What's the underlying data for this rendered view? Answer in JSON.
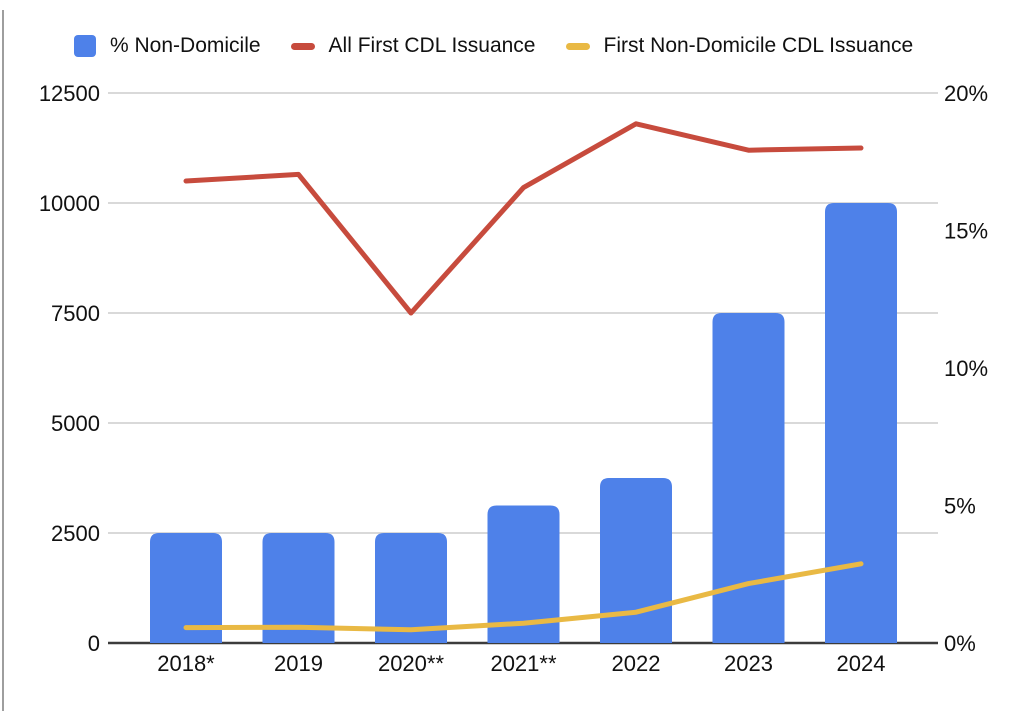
{
  "chart_data": {
    "type": "combo-bar-line",
    "categories": [
      "2018*",
      "2019",
      "2020**",
      "2021**",
      "2022",
      "2023",
      "2024"
    ],
    "series": [
      {
        "name": "% Non-Domicile",
        "type": "bar",
        "axis": "right",
        "color": "#4E81E9",
        "swatch": "square",
        "values": [
          4,
          4,
          4,
          5,
          6,
          12,
          16
        ],
        "unit": "%"
      },
      {
        "name": "All First CDL Issuance",
        "type": "line",
        "axis": "left",
        "color": "#C74B3D",
        "swatch": "dash",
        "values": [
          10500,
          10650,
          7500,
          10350,
          11800,
          11200,
          11250
        ]
      },
      {
        "name": "First Non-Domicile CDL Issuance",
        "type": "line",
        "axis": "left",
        "color": "#E9B944",
        "swatch": "dash",
        "values": [
          350,
          360,
          300,
          450,
          700,
          1350,
          1800
        ]
      }
    ],
    "left_axis": {
      "range": [
        0,
        12500
      ],
      "ticks": [
        {
          "v": 0,
          "label": "0"
        },
        {
          "v": 2500,
          "label": "2500"
        },
        {
          "v": 5000,
          "label": "5000"
        },
        {
          "v": 7500,
          "label": "7500"
        },
        {
          "v": 10000,
          "label": "10000"
        },
        {
          "v": 12500,
          "label": "12500"
        }
      ]
    },
    "right_axis": {
      "range": [
        0,
        20
      ],
      "ticks": [
        {
          "v": 0,
          "label": "0%"
        },
        {
          "v": 5,
          "label": "5%"
        },
        {
          "v": 10,
          "label": "10%"
        },
        {
          "v": 15,
          "label": "15%"
        },
        {
          "v": 20,
          "label": "20%"
        }
      ]
    },
    "grid": true,
    "legend_position": "top",
    "colors": {
      "gridline": "#d9d9d9",
      "zero_axis": "#3c3c3c",
      "axis_text": "#111111",
      "background": "#ffffff",
      "edge_line": "#9e9e9e"
    }
  }
}
